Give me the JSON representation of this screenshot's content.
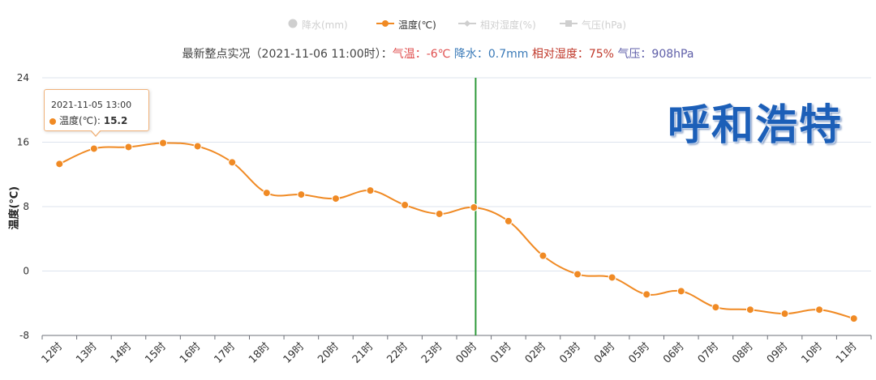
{
  "legend": [
    {
      "label": "降水(mm)",
      "icon": "circle-icon",
      "active": false
    },
    {
      "label": "温度(℃)",
      "icon": "line-circle-icon",
      "active": true
    },
    {
      "label": "相对湿度(%)",
      "icon": "line-diamond-icon",
      "active": false
    },
    {
      "label": "气压(hPa)",
      "icon": "line-square-icon",
      "active": false
    }
  ],
  "summary": {
    "prefix": "最新整点实况（2021-11-06 11:00时）：",
    "temp": "气温：-6℃",
    "rain": "降水：0.7mm",
    "humidity": "相对湿度：75%",
    "pressure": "气压：908hPa"
  },
  "city": "呼和浩特",
  "tooltip": {
    "time": "2021-11-05 13:00",
    "series_label": "温度(℃):",
    "value": "15.2"
  },
  "colors": {
    "line": "#f08a24",
    "marker_line": "#2e9a3a",
    "grid": "#dde3ee",
    "axis": "#6e7079"
  },
  "chart_data": {
    "type": "line",
    "categories": [
      "12时",
      "13时",
      "14时",
      "15时",
      "16时",
      "17时",
      "18时",
      "19时",
      "20时",
      "21时",
      "22时",
      "23时",
      "00时",
      "01时",
      "02时",
      "03时",
      "04时",
      "05时",
      "06时",
      "07时",
      "08时",
      "09时",
      "10时",
      "11时"
    ],
    "series": [
      {
        "name": "温度(℃)",
        "values": [
          13.3,
          15.2,
          15.4,
          15.9,
          15.5,
          13.5,
          9.7,
          9.5,
          9.0,
          10.0,
          8.2,
          7.1,
          7.9,
          6.2,
          1.9,
          -0.4,
          -0.8,
          -2.9,
          -2.5,
          -4.5,
          -4.8,
          -5.3,
          -4.8,
          -5.9
        ]
      }
    ],
    "ylabel": "温度(℃)",
    "ylim": [
      -8,
      24
    ],
    "yticks": [
      -8,
      0,
      8,
      16,
      24
    ],
    "marker_category": "00时",
    "grid": true,
    "legend_position": "top-center"
  }
}
